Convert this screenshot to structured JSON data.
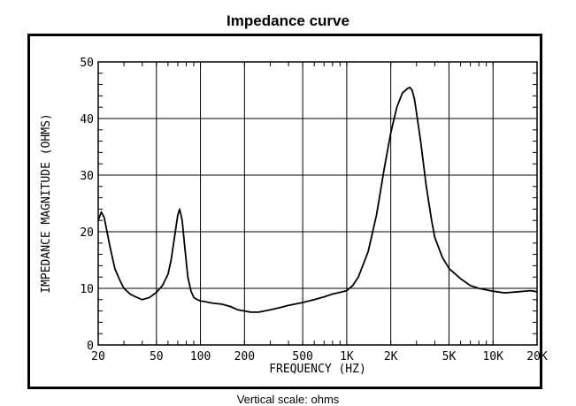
{
  "page": {
    "title": "Impedance curve",
    "caption": "Vertical scale: ohms"
  },
  "chart_data": {
    "type": "line",
    "title": "Impedance curve",
    "xlabel": "FREQUENCY (HZ)",
    "ylabel": "IMPEDANCE MAGNITUDE (OHMS)",
    "x_scale": "log",
    "xlim": [
      20,
      20000
    ],
    "ylim": [
      0,
      50
    ],
    "grid": true,
    "x_ticks": [
      {
        "value": 20,
        "label": "20"
      },
      {
        "value": 50,
        "label": "50"
      },
      {
        "value": 100,
        "label": "100"
      },
      {
        "value": 200,
        "label": "200"
      },
      {
        "value": 500,
        "label": "500"
      },
      {
        "value": 1000,
        "label": "1K"
      },
      {
        "value": 2000,
        "label": "2K"
      },
      {
        "value": 5000,
        "label": "5K"
      },
      {
        "value": 10000,
        "label": "10K"
      },
      {
        "value": 20000,
        "label": "20K"
      }
    ],
    "y_ticks": [
      {
        "value": 0,
        "label": "0"
      },
      {
        "value": 10,
        "label": "10"
      },
      {
        "value": 20,
        "label": "20"
      },
      {
        "value": 30,
        "label": "30"
      },
      {
        "value": 40,
        "label": "40"
      },
      {
        "value": 50,
        "label": "50"
      }
    ],
    "line_color": "#000000",
    "series": [
      {
        "x": [
          20,
          21,
          22,
          24,
          26,
          28,
          30,
          33,
          36,
          40,
          45,
          50,
          55,
          60,
          63,
          66,
          70,
          72,
          75,
          78,
          82,
          86,
          90,
          95,
          100,
          110,
          120,
          140,
          160,
          180,
          200,
          220,
          250,
          300,
          350,
          400,
          500,
          600,
          700,
          800,
          900,
          1000,
          1100,
          1200,
          1400,
          1600,
          1800,
          2000,
          2200,
          2400,
          2600,
          2700,
          2800,
          2900,
          3000,
          3200,
          3500,
          3800,
          4000,
          4500,
          5000,
          6000,
          7000,
          8000,
          10000,
          12000,
          15000,
          18000,
          20000
        ],
        "y": [
          22,
          23.5,
          22.5,
          17.5,
          13.5,
          11.5,
          10,
          9,
          8.5,
          8,
          8.4,
          9.3,
          10.5,
          12.5,
          15,
          18.5,
          23,
          24,
          22,
          17.5,
          12,
          9.6,
          8.4,
          8,
          7.8,
          7.6,
          7.4,
          7.2,
          6.8,
          6.2,
          6,
          5.8,
          5.8,
          6.2,
          6.6,
          7,
          7.5,
          8,
          8.5,
          9,
          9.3,
          9.6,
          10.5,
          12,
          16.5,
          23,
          31,
          37.5,
          42,
          44.5,
          45.3,
          45.5,
          45,
          43.5,
          41,
          36,
          28,
          22,
          19,
          15.5,
          13.5,
          11.7,
          10.5,
          10,
          9.5,
          9.2,
          9.4,
          9.6,
          9.4
        ]
      }
    ]
  }
}
